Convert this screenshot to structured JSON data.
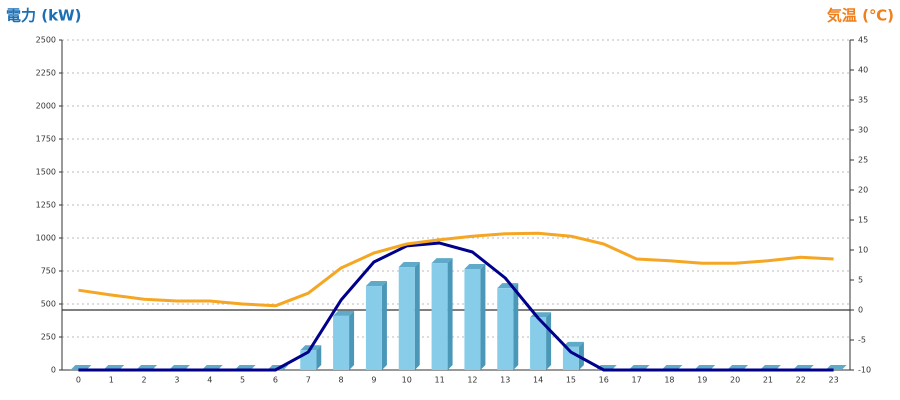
{
  "chart_data": {
    "type": "bar",
    "title_left": "電力 (kW)",
    "title_right": "気温 (℃)",
    "categories": [
      "0",
      "1",
      "2",
      "3",
      "4",
      "5",
      "6",
      "7",
      "8",
      "9",
      "10",
      "11",
      "12",
      "13",
      "14",
      "15",
      "16",
      "17",
      "18",
      "19",
      "20",
      "21",
      "22",
      "23"
    ],
    "series": [
      {
        "type": "bar",
        "color": "#87cde9",
        "values": [
          0,
          0,
          0,
          0,
          0,
          0,
          0,
          150,
          410,
          636,
          780,
          810,
          765,
          620,
          400,
          175,
          0,
          0,
          0,
          0,
          0,
          0,
          0,
          0
        ]
      },
      {
        "type": "line",
        "color": "#00008b",
        "values": [
          0,
          0,
          0,
          0,
          0,
          0,
          0,
          136,
          530,
          818,
          940,
          962,
          894,
          697,
          394,
          136,
          0,
          0,
          0,
          0,
          0,
          0,
          0,
          0
        ]
      },
      {
        "type": "line",
        "axis": "y2",
        "color": "#f5a623",
        "values": [
          3.3,
          2.5,
          1.8,
          1.5,
          1.5,
          1.0,
          0.7,
          2.8,
          7,
          9.5,
          11,
          11.7,
          12.3,
          12.7,
          12.8,
          12.3,
          11,
          8.5,
          8.2,
          7.8,
          7.8,
          8.2,
          8.8,
          8.5
        ]
      }
    ],
    "ylim": [
      0,
      2500
    ],
    "yticks": [
      0,
      250,
      500,
      750,
      1000,
      1250,
      1500,
      1750,
      2000,
      2250,
      2500
    ],
    "y2lim": [
      -10,
      45
    ],
    "y2ticks": [
      -10,
      -5,
      0,
      5,
      10,
      15,
      20,
      25,
      30,
      35,
      40,
      45
    ],
    "grid": true,
    "title_left_color": "#1a6fb5",
    "title_right_color": "#f07f1a"
  }
}
